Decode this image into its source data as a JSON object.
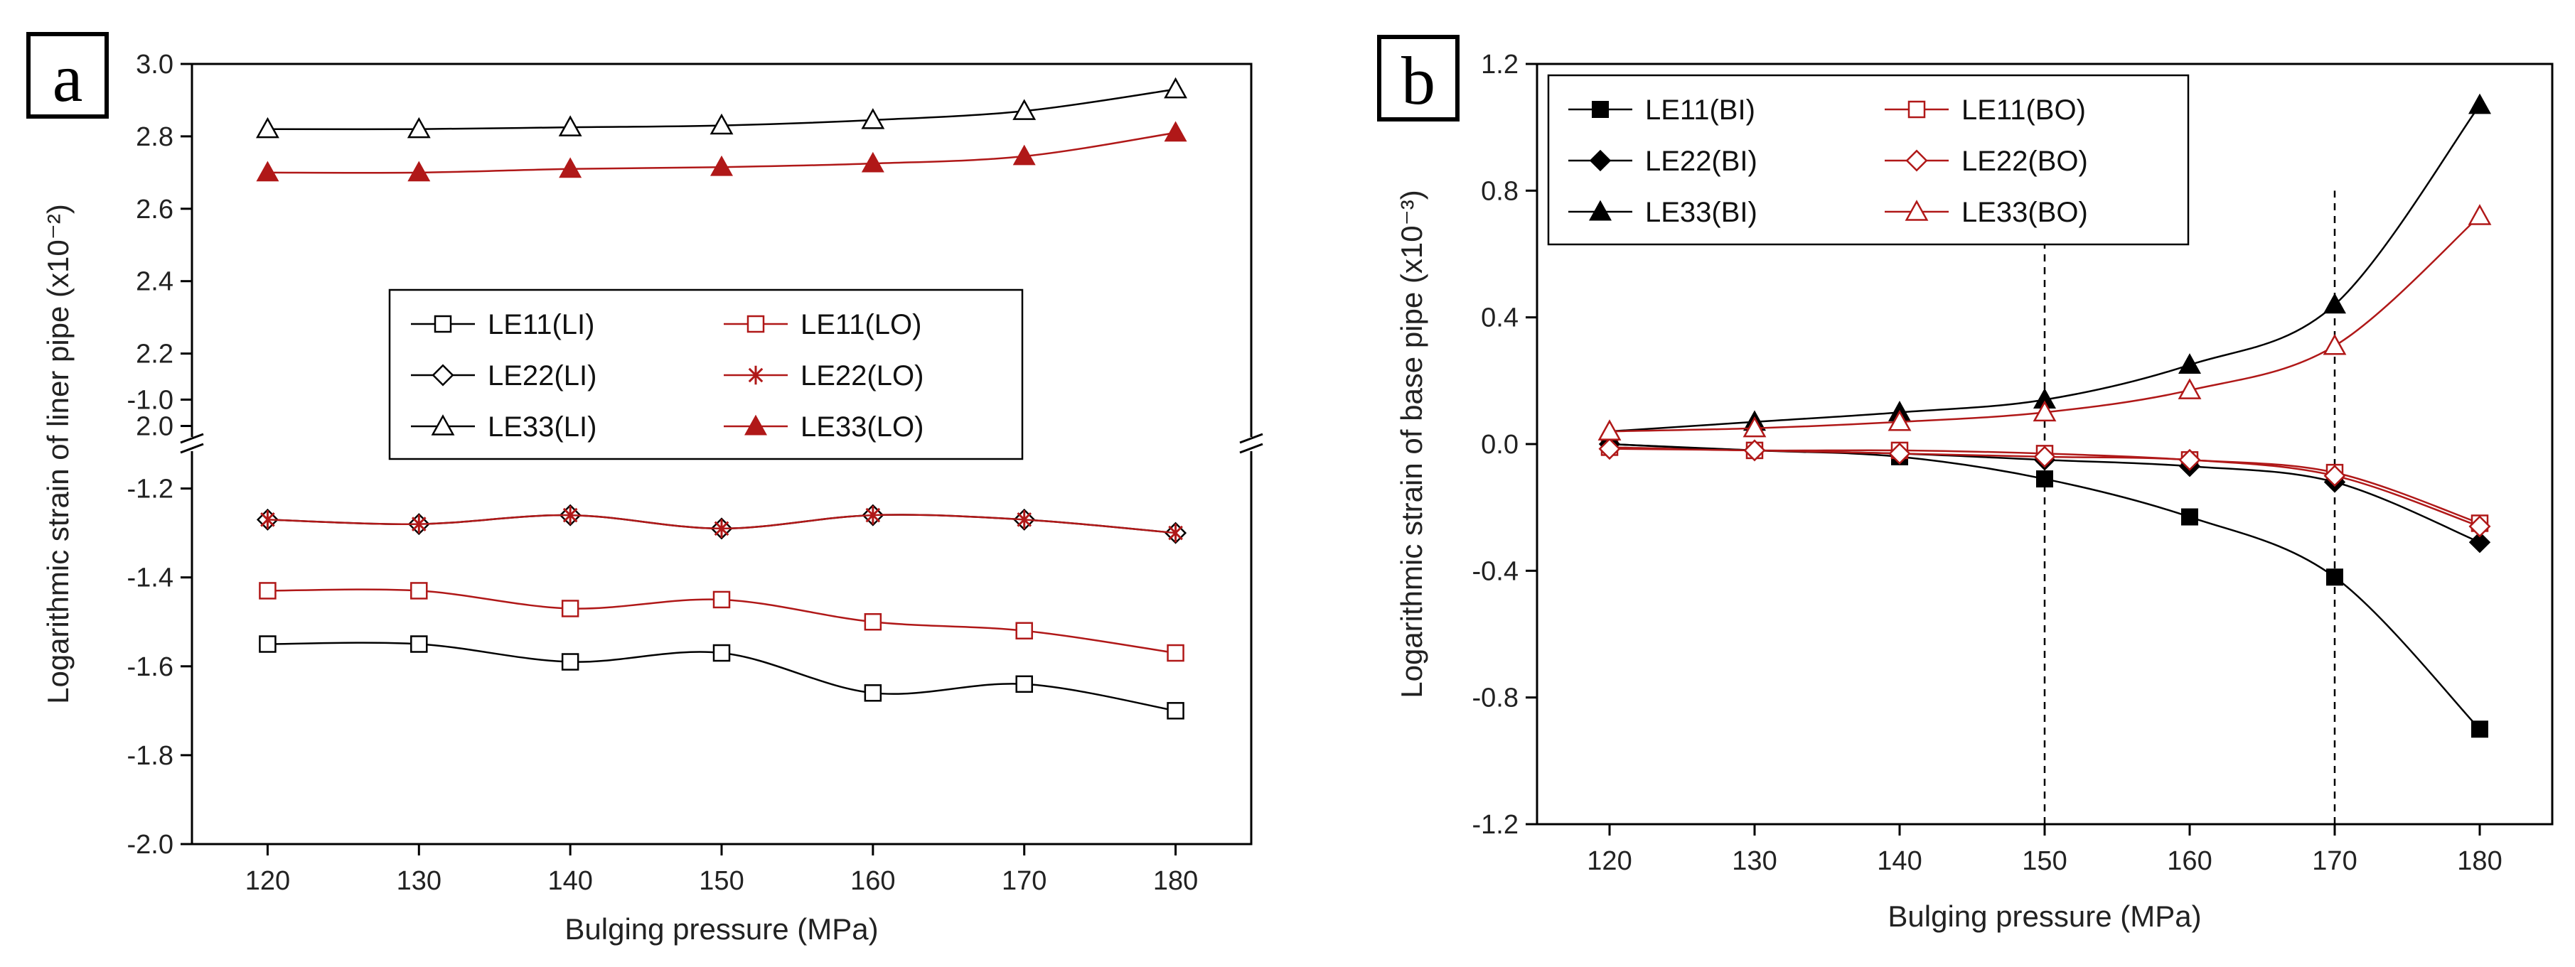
{
  "colors": {
    "black": "#000000",
    "red": "#b01818"
  },
  "chart_data": [
    {
      "panel_label": "a",
      "type": "line",
      "xlabel": "Bulging pressure (MPa)",
      "ylabel": "Logarithmic strain of liner pipe (x10⁻²)",
      "xlim": [
        115,
        185
      ],
      "x_ticks": [
        120,
        130,
        140,
        150,
        160,
        170,
        180
      ],
      "x": [
        120,
        130,
        140,
        150,
        160,
        170,
        180
      ],
      "axis_break": true,
      "upper_ylim": [
        1.95,
        3.0
      ],
      "upper_ticks": [
        "2.0",
        "2.2",
        "2.4",
        "2.6",
        "2.8",
        "3.0"
      ],
      "lower_ylim": [
        -2.0,
        -1.1
      ],
      "lower_ticks": [
        "-2.0",
        "-1.8",
        "-1.6",
        "-1.4",
        "-1.2",
        "-1.0"
      ],
      "legend_position": "center-right",
      "series": [
        {
          "name": "LE11(LI)",
          "segment": "lower",
          "color": "black",
          "marker": "square-open",
          "values": [
            -1.55,
            -1.55,
            -1.59,
            -1.57,
            -1.66,
            -1.64,
            -1.7
          ]
        },
        {
          "name": "LE11(LO)",
          "segment": "lower",
          "color": "red",
          "marker": "square-open",
          "values": [
            -1.43,
            -1.43,
            -1.47,
            -1.45,
            -1.5,
            -1.52,
            -1.57
          ]
        },
        {
          "name": "LE22(LI)",
          "segment": "lower",
          "color": "black",
          "marker": "diamond-open",
          "values": [
            -1.27,
            -1.28,
            -1.26,
            -1.29,
            -1.26,
            -1.27,
            -1.3
          ]
        },
        {
          "name": "LE22(LO)",
          "segment": "lower",
          "color": "red",
          "marker": "asterisk",
          "values": [
            -1.27,
            -1.28,
            -1.26,
            -1.29,
            -1.26,
            -1.27,
            -1.3
          ]
        },
        {
          "name": "LE33(LI)",
          "segment": "upper",
          "color": "black",
          "marker": "triangle-open",
          "values": [
            2.82,
            2.82,
            2.825,
            2.83,
            2.845,
            2.87,
            2.93
          ]
        },
        {
          "name": "LE33(LO)",
          "segment": "upper",
          "color": "red",
          "marker": "triangle-filled",
          "values": [
            2.7,
            2.7,
            2.71,
            2.715,
            2.725,
            2.745,
            2.81
          ]
        }
      ]
    },
    {
      "panel_label": "b",
      "type": "line",
      "xlabel": "Bulging pressure (MPa)",
      "ylabel": "Logarithmic strain of base pipe (x10⁻³)",
      "xlim": [
        115,
        185
      ],
      "x_ticks": [
        120,
        130,
        140,
        150,
        160,
        170,
        180
      ],
      "x": [
        120,
        130,
        140,
        150,
        160,
        170,
        180
      ],
      "ylim": [
        -1.2,
        1.2
      ],
      "y_ticks": [
        "-1.2",
        "-0.8",
        "-0.4",
        "0.0",
        "0.4",
        "0.8",
        "1.2"
      ],
      "vertical_lines": [
        150,
        170
      ],
      "legend_position": "top-left",
      "series": [
        {
          "name": "LE11(BI)",
          "color": "black",
          "marker": "square-filled",
          "values": [
            0.0,
            -0.02,
            -0.04,
            -0.11,
            -0.23,
            -0.42,
            -0.9
          ]
        },
        {
          "name": "LE11(BO)",
          "color": "red",
          "marker": "square-open",
          "values": [
            -0.01,
            -0.02,
            -0.02,
            -0.03,
            -0.05,
            -0.09,
            -0.25
          ]
        },
        {
          "name": "LE22(BI)",
          "color": "black",
          "marker": "diamond-filled",
          "values": [
            0.0,
            -0.02,
            -0.03,
            -0.05,
            -0.07,
            -0.12,
            -0.31
          ]
        },
        {
          "name": "LE22(BO)",
          "color": "red",
          "marker": "diamond-open",
          "values": [
            -0.015,
            -0.02,
            -0.03,
            -0.04,
            -0.05,
            -0.1,
            -0.26
          ]
        },
        {
          "name": "LE33(BI)",
          "color": "black",
          "marker": "triangle-filled",
          "values": [
            0.04,
            0.07,
            0.1,
            0.14,
            0.25,
            0.44,
            1.07
          ]
        },
        {
          "name": "LE33(BO)",
          "color": "red",
          "marker": "triangle-open",
          "values": [
            0.04,
            0.05,
            0.07,
            0.1,
            0.17,
            0.31,
            0.72
          ]
        }
      ]
    }
  ]
}
